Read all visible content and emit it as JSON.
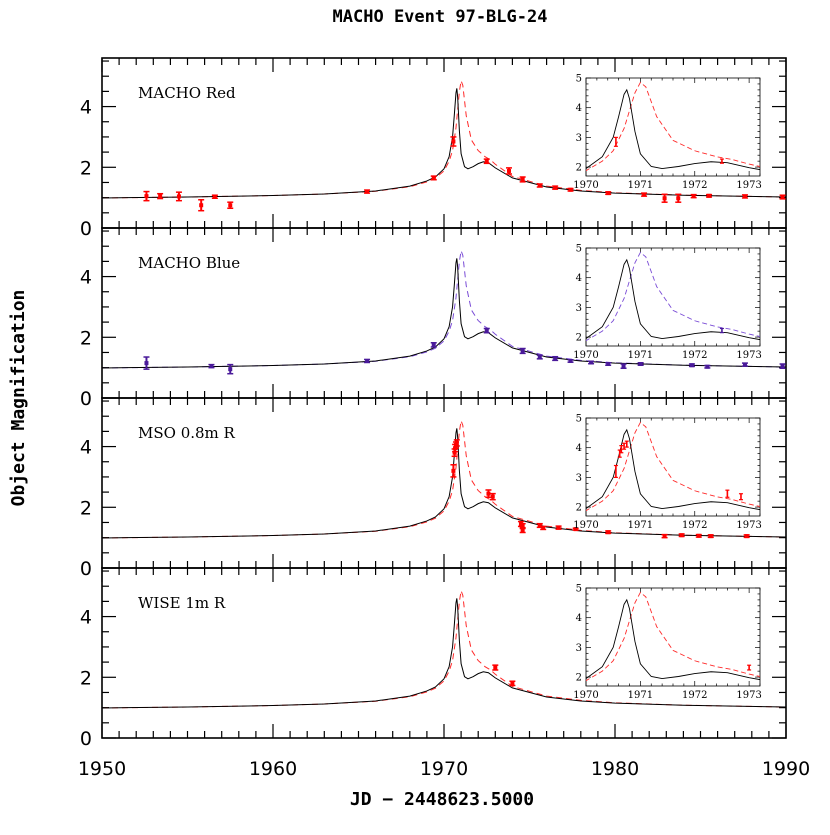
{
  "title": "MACHO Event 97-BLG-24",
  "xlabel": "JD − 2448623.5000",
  "ylabel": "Object Magnification",
  "chart_data": {
    "type": "line",
    "title": "MACHO Event 97-BLG-24",
    "xlabel": "JD − 2448623.5000",
    "ylabel": "Object Magnification",
    "xlim": [
      1950,
      1990
    ],
    "ylim": [
      0,
      5.6
    ],
    "x_ticks": [
      1950,
      1960,
      1970,
      1980,
      1990
    ],
    "y_ticks": [
      0,
      2,
      4
    ],
    "inset_xlim": [
      1970,
      1973.2
    ],
    "inset_ylim": [
      1.7,
      5
    ],
    "inset_x_ticks": [
      1970,
      1971,
      1972,
      1973
    ],
    "inset_y_ticks": [
      2,
      3,
      4,
      5
    ],
    "model_solid": {
      "x": [
        1950,
        1955,
        1960,
        1963,
        1966,
        1968,
        1969,
        1969.5,
        1970,
        1970.3,
        1970.5,
        1970.6,
        1970.7,
        1970.75,
        1970.8,
        1970.9,
        1971.0,
        1971.2,
        1971.4,
        1971.7,
        1972.0,
        1972.3,
        1972.6,
        1973.0,
        1974,
        1976,
        1978,
        1980,
        1984,
        1990
      ],
      "y": [
        0.99,
        1.02,
        1.07,
        1.12,
        1.22,
        1.38,
        1.55,
        1.68,
        1.95,
        2.35,
        3.0,
        3.7,
        4.45,
        4.6,
        4.3,
        3.2,
        2.45,
        2.02,
        1.95,
        2.02,
        2.12,
        2.18,
        2.15,
        1.98,
        1.65,
        1.35,
        1.22,
        1.15,
        1.08,
        1.02
      ]
    },
    "model_dashed": {
      "x": [
        1950,
        1955,
        1960,
        1963,
        1966,
        1968,
        1969,
        1969.5,
        1970,
        1970.3,
        1970.5,
        1970.7,
        1970.9,
        1971.0,
        1971.1,
        1971.3,
        1971.6,
        1972.0,
        1972.4,
        1972.7,
        1973.0,
        1974,
        1976,
        1978,
        1980,
        1984,
        1990
      ],
      "y": [
        0.99,
        1.02,
        1.07,
        1.12,
        1.21,
        1.36,
        1.52,
        1.64,
        1.88,
        2.2,
        2.55,
        3.3,
        4.5,
        4.85,
        4.7,
        3.7,
        2.9,
        2.55,
        2.35,
        2.25,
        2.1,
        1.7,
        1.38,
        1.24,
        1.16,
        1.08,
        1.02
      ]
    },
    "panels": [
      {
        "label": "MACHO Red",
        "inset": true,
        "data_color": "#ff0000",
        "dashed_color": "#ff2a2a",
        "points": [
          {
            "x": 1952.6,
            "y": 1.05,
            "err": 0.15
          },
          {
            "x": 1953.4,
            "y": 1.05,
            "err": 0.08
          },
          {
            "x": 1954.5,
            "y": 1.04,
            "err": 0.14
          },
          {
            "x": 1955.8,
            "y": 0.75,
            "err": 0.18
          },
          {
            "x": 1956.6,
            "y": 1.03,
            "err": 0.05
          },
          {
            "x": 1957.5,
            "y": 0.75,
            "err": 0.1
          },
          {
            "x": 1965.5,
            "y": 1.2,
            "err": 0.05
          },
          {
            "x": 1969.4,
            "y": 1.65,
            "err": 0.06
          },
          {
            "x": 1970.55,
            "y": 2.85,
            "err": 0.15
          },
          {
            "x": 1972.5,
            "y": 2.2,
            "err": 0.07
          },
          {
            "x": 1973.8,
            "y": 1.88,
            "err": 0.1
          },
          {
            "x": 1974.6,
            "y": 1.6,
            "err": 0.08
          },
          {
            "x": 1975.6,
            "y": 1.4,
            "err": 0.05
          },
          {
            "x": 1976.5,
            "y": 1.33,
            "err": 0.05
          },
          {
            "x": 1977.4,
            "y": 1.26,
            "err": 0.04
          },
          {
            "x": 1979.6,
            "y": 1.15,
            "err": 0.04
          },
          {
            "x": 1981.7,
            "y": 1.1,
            "err": 0.05
          },
          {
            "x": 1982.9,
            "y": 0.98,
            "err": 0.13
          },
          {
            "x": 1983.7,
            "y": 0.98,
            "err": 0.13
          },
          {
            "x": 1984.6,
            "y": 1.05,
            "err": 0.05
          },
          {
            "x": 1985.5,
            "y": 1.06,
            "err": 0.04
          },
          {
            "x": 1987.6,
            "y": 1.04,
            "err": 0.05
          },
          {
            "x": 1989.8,
            "y": 1.02,
            "err": 0.06
          }
        ]
      },
      {
        "label": "MACHO Blue",
        "inset": true,
        "data_color": "#4a1a9a",
        "dashed_color": "#7a4cd6",
        "points": [
          {
            "x": 1952.6,
            "y": 1.15,
            "err": 0.2
          },
          {
            "x": 1956.4,
            "y": 1.05,
            "err": 0.05
          },
          {
            "x": 1957.5,
            "y": 0.95,
            "err": 0.15
          },
          {
            "x": 1965.5,
            "y": 1.22,
            "err": 0.05
          },
          {
            "x": 1969.4,
            "y": 1.75,
            "err": 0.07
          },
          {
            "x": 1972.5,
            "y": 2.22,
            "err": 0.07
          },
          {
            "x": 1974.6,
            "y": 1.55,
            "err": 0.08
          },
          {
            "x": 1975.6,
            "y": 1.35,
            "err": 0.06
          },
          {
            "x": 1976.5,
            "y": 1.3,
            "err": 0.06
          },
          {
            "x": 1977.4,
            "y": 1.22,
            "err": 0.04
          },
          {
            "x": 1978.6,
            "y": 1.17,
            "err": 0.04
          },
          {
            "x": 1979.6,
            "y": 1.12,
            "err": 0.04
          },
          {
            "x": 1980.5,
            "y": 1.05,
            "err": 0.07
          },
          {
            "x": 1981.5,
            "y": 1.12,
            "err": 0.04
          },
          {
            "x": 1984.5,
            "y": 1.08,
            "err": 0.04
          },
          {
            "x": 1985.4,
            "y": 1.03,
            "err": 0.04
          },
          {
            "x": 1987.6,
            "y": 1.1,
            "err": 0.05
          },
          {
            "x": 1989.8,
            "y": 1.05,
            "err": 0.07
          }
        ]
      },
      {
        "label": "MSO 0.8m R",
        "inset": true,
        "data_color": "#ff0000",
        "dashed_color": "#ff2a2a",
        "points": [
          {
            "x": 1970.55,
            "y": 3.2,
            "err": 0.2
          },
          {
            "x": 1970.62,
            "y": 3.8,
            "err": 0.12
          },
          {
            "x": 1970.65,
            "y": 3.95,
            "err": 0.12
          },
          {
            "x": 1970.7,
            "y": 4.05,
            "err": 0.1
          },
          {
            "x": 1970.75,
            "y": 4.12,
            "err": 0.1
          },
          {
            "x": 1972.6,
            "y": 2.45,
            "err": 0.12
          },
          {
            "x": 1972.85,
            "y": 2.35,
            "err": 0.1
          },
          {
            "x": 1974.5,
            "y": 1.45,
            "err": 0.08
          },
          {
            "x": 1974.6,
            "y": 1.38,
            "err": 0.08
          },
          {
            "x": 1974.6,
            "y": 1.25,
            "err": 0.08
          },
          {
            "x": 1975.6,
            "y": 1.4,
            "err": 0.06
          },
          {
            "x": 1975.8,
            "y": 1.32,
            "err": 0.05
          },
          {
            "x": 1976.7,
            "y": 1.33,
            "err": 0.05
          },
          {
            "x": 1977.7,
            "y": 1.28,
            "err": 0.03
          },
          {
            "x": 1979.6,
            "y": 1.18,
            "err": 0.04
          },
          {
            "x": 1982.9,
            "y": 1.05,
            "err": 0.05
          },
          {
            "x": 1983.9,
            "y": 1.08,
            "err": 0.04
          },
          {
            "x": 1984.9,
            "y": 1.06,
            "err": 0.04
          },
          {
            "x": 1985.6,
            "y": 1.05,
            "err": 0.04
          },
          {
            "x": 1987.7,
            "y": 1.05,
            "err": 0.04
          }
        ]
      },
      {
        "label": "WISE 1m R",
        "inset": true,
        "data_color": "#ff0000",
        "dashed_color": "#ff2a2a",
        "points": [
          {
            "x": 1973.0,
            "y": 2.32,
            "err": 0.08
          },
          {
            "x": 1974.0,
            "y": 1.8,
            "err": 0.07
          }
        ]
      }
    ]
  }
}
